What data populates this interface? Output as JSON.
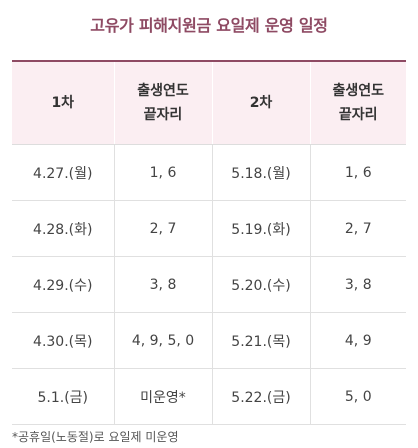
{
  "title": "고유가 피해지원금 요일제 운영 일정",
  "headers": {
    "round1": "1차",
    "birth_year_line1": "출생연도",
    "birth_year_line2": "끝자리",
    "round2": "2차"
  },
  "rows": [
    {
      "date1": "4.27.(월)",
      "digits1": "1, 6",
      "date2": "5.18.(월)",
      "digits2": "1, 6"
    },
    {
      "date1": "4.28.(화)",
      "digits1": "2, 7",
      "date2": "5.19.(화)",
      "digits2": "2, 7"
    },
    {
      "date1": "4.29.(수)",
      "digits1": "3, 8",
      "date2": "5.20.(수)",
      "digits2": "3, 8"
    },
    {
      "date1": "4.30.(목)",
      "digits1": "4, 9, 5, 0",
      "date2": "5.21.(목)",
      "digits2": "4, 9"
    },
    {
      "date1": "5.1.(금)",
      "digits1": "미운영*",
      "date2": "5.22.(금)",
      "digits2": "5, 0"
    }
  ],
  "footnote": "*공휴일(노동절)로 요일제 미운영",
  "colors": {
    "accent": "#8e4a63",
    "header_bg": "#fbeef2"
  }
}
